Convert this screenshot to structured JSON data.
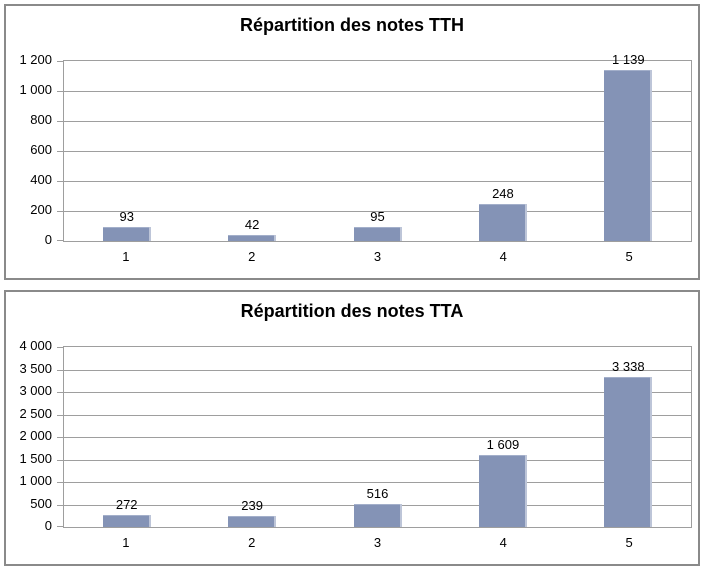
{
  "chart_data": [
    {
      "type": "bar",
      "title": "Répartition des notes TTH",
      "categories": [
        "1",
        "2",
        "3",
        "4",
        "5"
      ],
      "values": [
        93,
        42,
        95,
        248,
        1139
      ],
      "value_labels": [
        "93",
        "42",
        "95",
        "248",
        "1 139"
      ],
      "xlabel": "",
      "ylabel": "",
      "ylim": [
        0,
        1200
      ],
      "ytick_step": 200,
      "ytick_labels": [
        "0",
        "200",
        "400",
        "600",
        "800",
        "1 000",
        "1 200"
      ],
      "grid": true,
      "legend": "none"
    },
    {
      "type": "bar",
      "title": "Répartition des notes TTA",
      "categories": [
        "1",
        "2",
        "3",
        "4",
        "5"
      ],
      "values": [
        272,
        239,
        516,
        1609,
        3338
      ],
      "value_labels": [
        "272",
        "239",
        "516",
        "1 609",
        "3 338"
      ],
      "xlabel": "",
      "ylabel": "",
      "ylim": [
        0,
        4000
      ],
      "ytick_step": 500,
      "ytick_labels": [
        "0",
        "500",
        "1 000",
        "1 500",
        "2 000",
        "2 500",
        "3 000",
        "3 500",
        "4 000"
      ],
      "grid": true,
      "legend": "none"
    }
  ],
  "colors": {
    "bar_fill": "#8493B6",
    "bar_edge_highlight": "#BDC5D8",
    "gridline": "#9E9E9E",
    "panel_border": "#8A8A8A",
    "text": "#000000",
    "background": "#FFFFFF"
  }
}
